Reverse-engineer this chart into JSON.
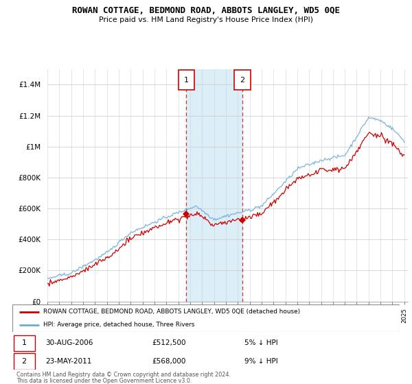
{
  "title": "ROWAN COTTAGE, BEDMOND ROAD, ABBOTS LANGLEY, WD5 0QE",
  "subtitle": "Price paid vs. HM Land Registry's House Price Index (HPI)",
  "legend_line1": "ROWAN COTTAGE, BEDMOND ROAD, ABBOTS LANGLEY, WD5 0QE (detached house)",
  "legend_line2": "HPI: Average price, detached house, Three Rivers",
  "footnote1": "Contains HM Land Registry data © Crown copyright and database right 2024.",
  "footnote2": "This data is licensed under the Open Government Licence v3.0.",
  "transaction1_date": "30-AUG-2006",
  "transaction1_price": "£512,500",
  "transaction1_hpi": "5% ↓ HPI",
  "transaction2_date": "23-MAY-2011",
  "transaction2_price": "£568,000",
  "transaction2_hpi": "9% ↓ HPI",
  "hpi_color": "#6baed6",
  "price_color": "#cc0000",
  "shade_color": "#dceef8",
  "ylim": [
    0,
    1500000
  ],
  "yticks": [
    0,
    200000,
    400000,
    600000,
    800000,
    1000000,
    1200000,
    1400000
  ],
  "transaction1_x": 2006.67,
  "transaction1_y": 512500,
  "transaction2_x": 2011.39,
  "transaction2_y": 568000,
  "shade_x1": 2006.67,
  "shade_x2": 2011.39,
  "xmin": 1995,
  "xmax": 2025.3
}
